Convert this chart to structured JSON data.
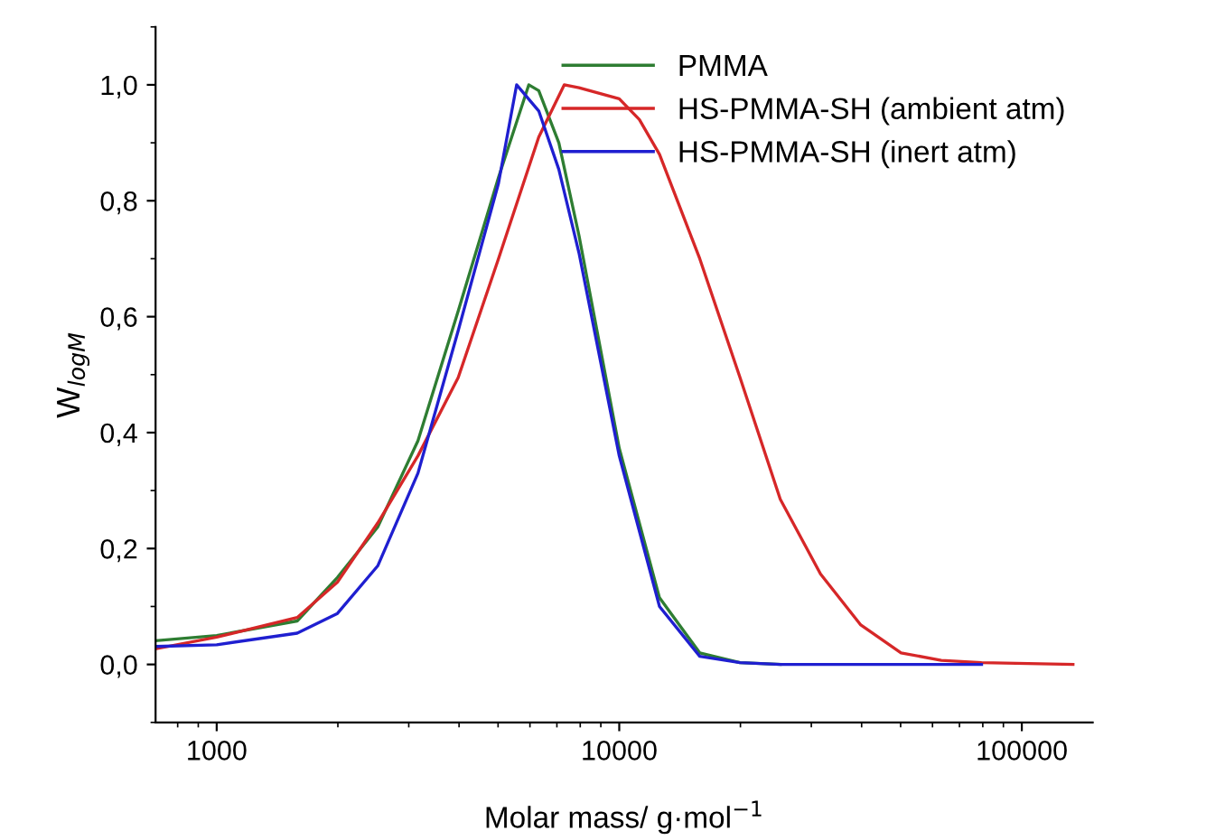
{
  "chart_data": {
    "type": "line",
    "xlabel": "Molar mass/ g·mol$^{−1}$",
    "ylabel": "W$_{logM}$",
    "log": "x",
    "grid": false,
    "legend": "top right",
    "line_style": "solid",
    "marker": "none",
    "xlim": [
      705,
      150000
    ],
    "xticks": [
      1000,
      10000,
      100000
    ],
    "ylim": [
      -0.1,
      1.1
    ],
    "yticks": [
      {
        "value": 0,
        "label": "0,0"
      },
      {
        "value": 0.2,
        "label": "0,2"
      },
      {
        "value": 0.4,
        "label": "0,4"
      },
      {
        "value": 0.6,
        "label": "0,6"
      },
      {
        "value": 0.8,
        "label": "0,8"
      },
      {
        "value": 1.0,
        "label": "1,0"
      }
    ],
    "series": [
      {
        "name": "PMMA",
        "color": "#2e7d32",
        "x": [
          705,
          1000,
          1585,
          1995,
          2512,
          3162,
          3981,
          5012,
          5960,
          6310,
          7079,
          7943,
          10000,
          12589,
          15849,
          19953,
          25119
        ],
        "values": [
          0.041,
          0.05,
          0.075,
          0.15,
          0.237,
          0.386,
          0.61,
          0.84,
          1.0,
          0.99,
          0.9,
          0.74,
          0.373,
          0.115,
          0.02,
          0.003,
          0.0
        ]
      },
      {
        "name": "HS-PMMA-SH (ambient atm)",
        "color": "#d62728",
        "x": [
          705,
          1000,
          1585,
          1995,
          2512,
          3162,
          3981,
          5012,
          6310,
          7300,
          7943,
          10000,
          11220,
          12589,
          15849,
          19953,
          25119,
          31623,
          39811,
          50119,
          63096,
          79433,
          134000
        ],
        "values": [
          0.027,
          0.047,
          0.081,
          0.142,
          0.244,
          0.36,
          0.495,
          0.7,
          0.91,
          1.0,
          0.995,
          0.976,
          0.94,
          0.88,
          0.7,
          0.495,
          0.285,
          0.156,
          0.068,
          0.02,
          0.007,
          0.003,
          0.0
        ]
      },
      {
        "name": "HS-PMMA-SH (inert atm)",
        "color": "#1f1fd0",
        "x": [
          705,
          1000,
          1585,
          1995,
          2512,
          3162,
          3981,
          5012,
          5560,
          6310,
          7079,
          7943,
          10000,
          12589,
          15849,
          19953,
          25119,
          39811,
          79433
        ],
        "values": [
          0.031,
          0.034,
          0.054,
          0.088,
          0.17,
          0.33,
          0.576,
          0.83,
          1.0,
          0.955,
          0.854,
          0.71,
          0.36,
          0.1,
          0.014,
          0.003,
          0.0,
          0.0,
          0.0
        ]
      }
    ]
  }
}
